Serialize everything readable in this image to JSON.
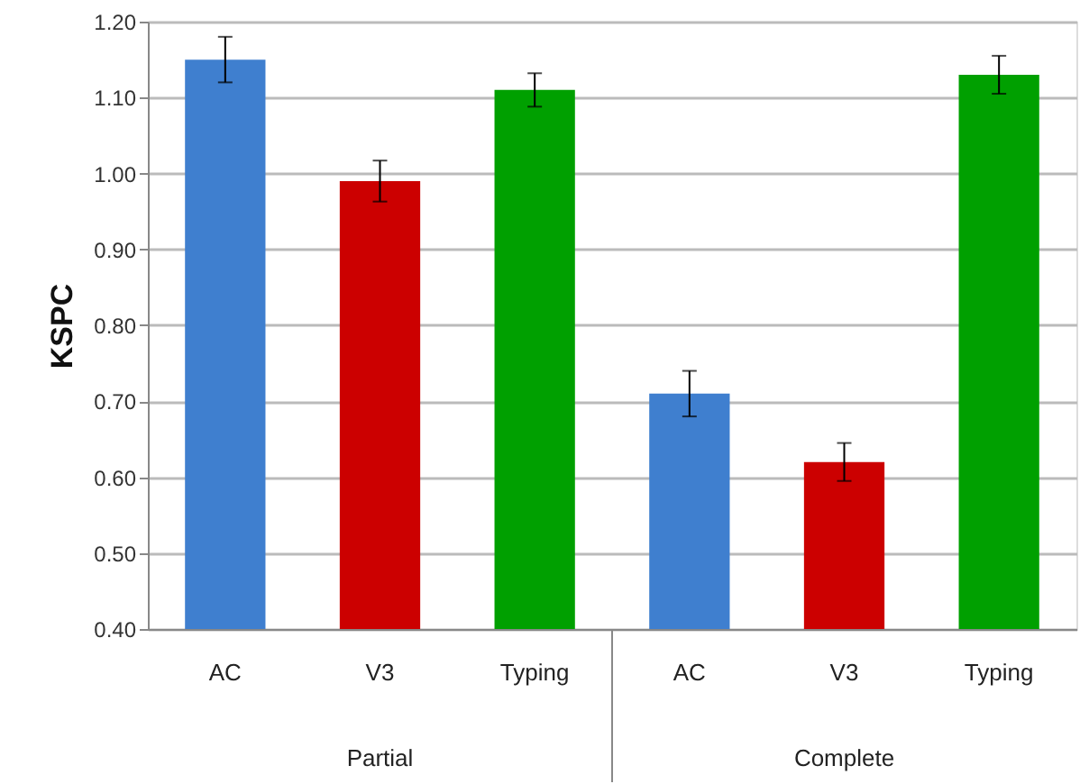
{
  "chart_data": {
    "type": "bar",
    "categories": [
      "AC",
      "V3",
      "Typing",
      "AC",
      "V3",
      "Typing"
    ],
    "values": [
      1.15,
      0.99,
      1.11,
      0.71,
      0.62,
      1.13
    ],
    "errors": [
      0.03,
      0.027,
      0.022,
      0.03,
      0.025,
      0.025
    ],
    "colors": [
      "#3f7fcf",
      "#cc0000",
      "#00a000",
      "#3f7fcf",
      "#cc0000",
      "#00a000"
    ],
    "ylabel": "KSPC",
    "ylim": [
      0.4,
      1.2
    ],
    "yticks": [
      {
        "value": 0.4,
        "label": "0.40"
      },
      {
        "value": 0.5,
        "label": "0.50"
      },
      {
        "value": 0.6,
        "label": "0.60"
      },
      {
        "value": 0.7,
        "label": "0.70"
      },
      {
        "value": 0.8,
        "label": "0.80"
      },
      {
        "value": 0.9,
        "label": "0.90"
      },
      {
        "value": 1.0,
        "label": "1.00"
      },
      {
        "value": 1.1,
        "label": "1.10"
      },
      {
        "value": 1.2,
        "label": "1.20"
      }
    ],
    "grid": "y",
    "annotations": [
      "Partial",
      "Complete"
    ]
  }
}
